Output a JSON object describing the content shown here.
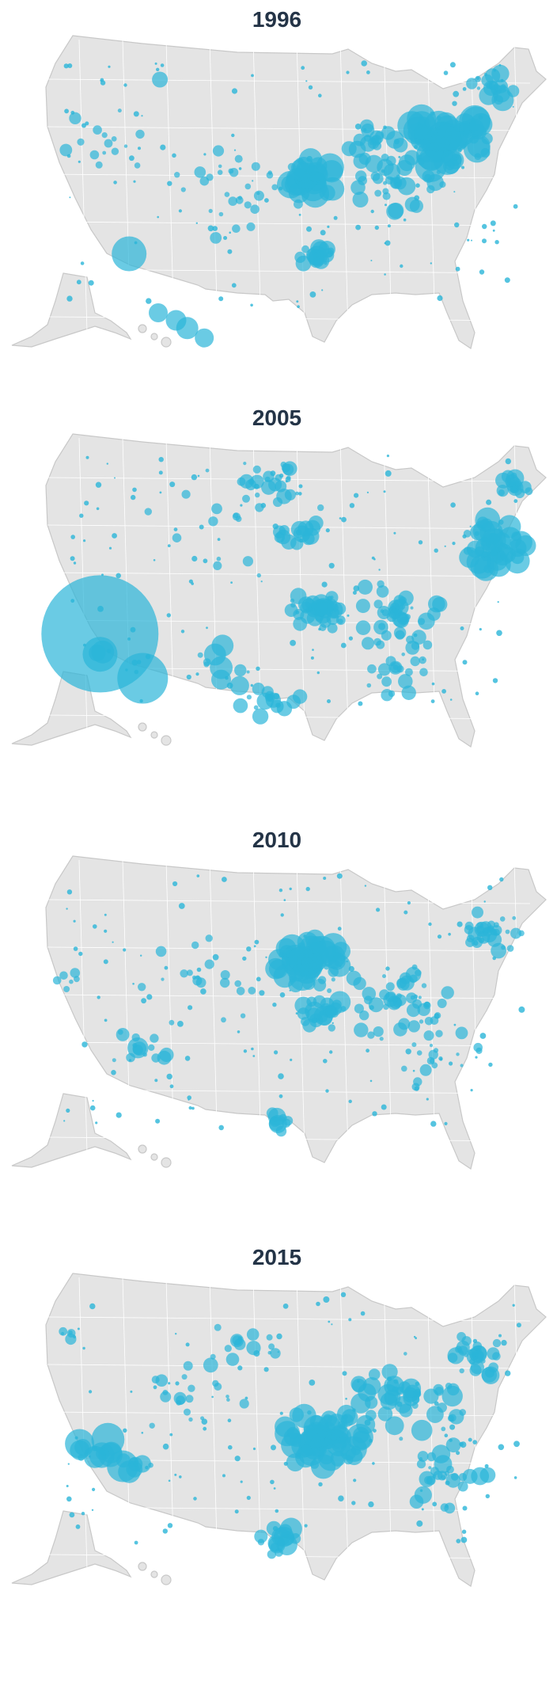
{
  "panels": [
    {
      "title": "1996"
    },
    {
      "title": "2005"
    },
    {
      "title": "2010"
    },
    {
      "title": "2015"
    }
  ]
}
